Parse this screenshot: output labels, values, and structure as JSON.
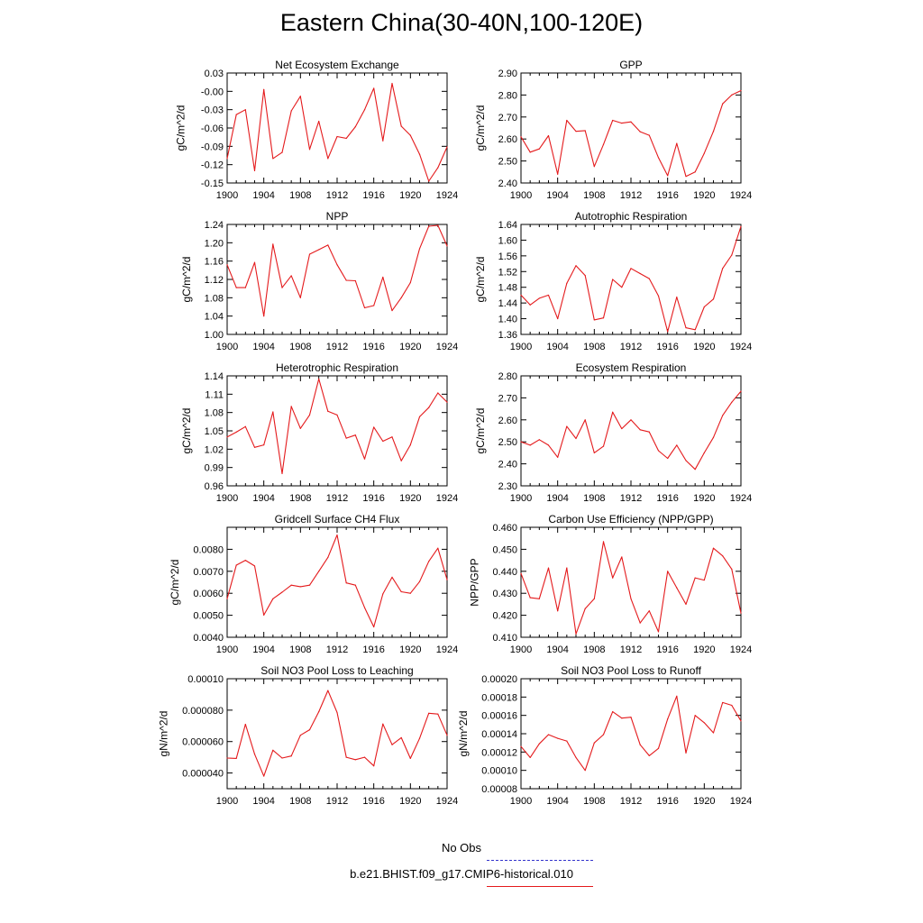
{
  "title": "Eastern China(30-40N,100-120E)",
  "legend": {
    "obs_label": "No Obs",
    "model_label": "b.e21.BHIST.f09_g17.CMIP6-historical.010",
    "obs_color": "#3333cc",
    "model_color": "#e41a1c"
  },
  "chart_data": [
    {
      "type": "line",
      "title": "Net Ecosystem Exchange",
      "ylabel": "gC/m^2/d",
      "xlim": [
        1900,
        1924
      ],
      "ylim": [
        -0.15,
        0.03
      ],
      "xticks": [
        "1900",
        "1904",
        "1908",
        "1912",
        "1916",
        "1920",
        "1924"
      ],
      "yticks": [
        "-0.15",
        "-0.12",
        "-0.09",
        "-0.06",
        "-0.03",
        "-0.00",
        "0.03"
      ],
      "series": [
        {
          "color": "#e41a1c",
          "x": [
            1900,
            1901,
            1902,
            1903,
            1904,
            1905,
            1906,
            1907,
            1908,
            1909,
            1910,
            1911,
            1912,
            1913,
            1914,
            1915,
            1916,
            1917,
            1918,
            1919,
            1920,
            1921,
            1922,
            1923,
            1924
          ],
          "values": [
            -0.11,
            -0.038,
            -0.03,
            -0.13,
            0.003,
            -0.11,
            -0.1,
            -0.032,
            -0.008,
            -0.095,
            -0.049,
            -0.11,
            -0.074,
            -0.077,
            -0.058,
            -0.03,
            0.005,
            -0.081,
            0.013,
            -0.057,
            -0.072,
            -0.103,
            -0.147,
            -0.125,
            -0.091
          ]
        }
      ]
    },
    {
      "type": "line",
      "title": "GPP",
      "ylabel": "gC/m^2/d",
      "xlim": [
        1900,
        1924
      ],
      "ylim": [
        2.4,
        2.9
      ],
      "xticks": [
        "1900",
        "1904",
        "1908",
        "1912",
        "1916",
        "1920",
        "1924"
      ],
      "yticks": [
        "2.40",
        "2.50",
        "2.60",
        "2.70",
        "2.80",
        "2.90"
      ],
      "series": [
        {
          "color": "#e41a1c",
          "x": [
            1900,
            1901,
            1902,
            1903,
            1904,
            1905,
            1906,
            1907,
            1908,
            1909,
            1910,
            1911,
            1912,
            1913,
            1914,
            1915,
            1916,
            1917,
            1918,
            1919,
            1920,
            1921,
            1922,
            1923,
            1924
          ],
          "values": [
            2.61,
            2.54,
            2.555,
            2.615,
            2.44,
            2.685,
            2.635,
            2.638,
            2.475,
            2.575,
            2.685,
            2.672,
            2.678,
            2.633,
            2.617,
            2.515,
            2.433,
            2.58,
            2.43,
            2.45,
            2.535,
            2.635,
            2.76,
            2.8,
            2.82
          ]
        }
      ]
    },
    {
      "type": "line",
      "title": "NPP",
      "ylabel": "gC/m^2/d",
      "xlim": [
        1900,
        1924
      ],
      "ylim": [
        1.0,
        1.24
      ],
      "xticks": [
        "1900",
        "1904",
        "1908",
        "1912",
        "1916",
        "1920",
        "1924"
      ],
      "yticks": [
        "1.00",
        "1.04",
        "1.08",
        "1.12",
        "1.16",
        "1.20",
        "1.24"
      ],
      "series": [
        {
          "color": "#e41a1c",
          "x": [
            1900,
            1901,
            1902,
            1903,
            1904,
            1905,
            1906,
            1907,
            1908,
            1909,
            1910,
            1911,
            1912,
            1913,
            1914,
            1915,
            1916,
            1917,
            1918,
            1919,
            1920,
            1921,
            1922,
            1923,
            1924
          ],
          "values": [
            1.152,
            1.102,
            1.102,
            1.157,
            1.04,
            1.197,
            1.102,
            1.128,
            1.08,
            1.175,
            1.185,
            1.195,
            1.152,
            1.118,
            1.117,
            1.058,
            1.063,
            1.125,
            1.052,
            1.08,
            1.113,
            1.187,
            1.236,
            1.238,
            1.193
          ]
        }
      ]
    },
    {
      "type": "line",
      "title": "Autotrophic Respiration",
      "ylabel": "gC/m^2/d",
      "xlim": [
        1900,
        1924
      ],
      "ylim": [
        1.36,
        1.64
      ],
      "xticks": [
        "1900",
        "1904",
        "1908",
        "1912",
        "1916",
        "1920",
        "1924"
      ],
      "yticks": [
        "1.36",
        "1.40",
        "1.44",
        "1.48",
        "1.52",
        "1.56",
        "1.60",
        "1.64"
      ],
      "series": [
        {
          "color": "#e41a1c",
          "x": [
            1900,
            1901,
            1902,
            1903,
            1904,
            1905,
            1906,
            1907,
            1908,
            1909,
            1910,
            1911,
            1912,
            1913,
            1914,
            1915,
            1916,
            1917,
            1918,
            1919,
            1920,
            1921,
            1922,
            1923,
            1924
          ],
          "values": [
            1.46,
            1.435,
            1.452,
            1.46,
            1.4,
            1.49,
            1.535,
            1.51,
            1.397,
            1.402,
            1.5,
            1.48,
            1.528,
            1.515,
            1.502,
            1.458,
            1.367,
            1.455,
            1.377,
            1.372,
            1.43,
            1.45,
            1.528,
            1.562,
            1.635
          ]
        }
      ]
    },
    {
      "type": "line",
      "title": "Heterotrophic Respiration",
      "ylabel": "gC/m^2/d",
      "xlim": [
        1900,
        1924
      ],
      "ylim": [
        0.96,
        1.14
      ],
      "xticks": [
        "1900",
        "1904",
        "1908",
        "1912",
        "1916",
        "1920",
        "1924"
      ],
      "yticks": [
        "0.96",
        "0.99",
        "1.02",
        "1.05",
        "1.08",
        "1.11",
        "1.14"
      ],
      "series": [
        {
          "color": "#e41a1c",
          "x": [
            1900,
            1901,
            1902,
            1903,
            1904,
            1905,
            1906,
            1907,
            1908,
            1909,
            1910,
            1911,
            1912,
            1913,
            1914,
            1915,
            1916,
            1917,
            1918,
            1919,
            1920,
            1921,
            1922,
            1923,
            1924
          ],
          "values": [
            1.04,
            1.048,
            1.057,
            1.023,
            1.027,
            1.081,
            0.98,
            1.09,
            1.054,
            1.076,
            1.135,
            1.082,
            1.076,
            1.038,
            1.043,
            1.004,
            1.056,
            1.033,
            1.04,
            1.001,
            1.027,
            1.073,
            1.088,
            1.112,
            1.097
          ]
        }
      ]
    },
    {
      "type": "line",
      "title": "Ecosystem Respiration",
      "ylabel": "gC/m^2/d",
      "xlim": [
        1900,
        1924
      ],
      "ylim": [
        2.3,
        2.8
      ],
      "xticks": [
        "1900",
        "1904",
        "1908",
        "1912",
        "1916",
        "1920",
        "1924"
      ],
      "yticks": [
        "2.30",
        "2.40",
        "2.50",
        "2.60",
        "2.70",
        "2.80"
      ],
      "series": [
        {
          "color": "#e41a1c",
          "x": [
            1900,
            1901,
            1902,
            1903,
            1904,
            1905,
            1906,
            1907,
            1908,
            1909,
            1910,
            1911,
            1912,
            1913,
            1914,
            1915,
            1916,
            1917,
            1918,
            1919,
            1920,
            1921,
            1922,
            1923,
            1924
          ],
          "values": [
            2.5,
            2.485,
            2.51,
            2.485,
            2.43,
            2.57,
            2.515,
            2.6,
            2.45,
            2.48,
            2.635,
            2.56,
            2.6,
            2.555,
            2.545,
            2.46,
            2.425,
            2.485,
            2.415,
            2.375,
            2.45,
            2.52,
            2.62,
            2.68,
            2.73
          ]
        }
      ]
    },
    {
      "type": "line",
      "title": "Gridcell Surface CH4 Flux",
      "ylabel": "gC/m^2/d",
      "xlim": [
        1900,
        1924
      ],
      "ylim": [
        0.004,
        0.009
      ],
      "xticks": [
        "1900",
        "1904",
        "1908",
        "1912",
        "1916",
        "1920",
        "1924"
      ],
      "yticks": [
        "0.0040",
        "0.0050",
        "0.0060",
        "0.0070",
        "0.0080"
      ],
      "series": [
        {
          "color": "#e41a1c",
          "x": [
            1900,
            1901,
            1902,
            1903,
            1904,
            1905,
            1906,
            1907,
            1908,
            1909,
            1910,
            1911,
            1912,
            1913,
            1914,
            1915,
            1916,
            1917,
            1918,
            1919,
            1920,
            1921,
            1922,
            1923,
            1924
          ],
          "values": [
            0.00575,
            0.00728,
            0.0075,
            0.00724,
            0.00501,
            0.00575,
            0.00605,
            0.00637,
            0.0063,
            0.00637,
            0.007,
            0.00763,
            0.00865,
            0.00647,
            0.00637,
            0.00535,
            0.00447,
            0.00597,
            0.00673,
            0.00607,
            0.006,
            0.00653,
            0.00745,
            0.00805,
            0.00662
          ]
        }
      ]
    },
    {
      "type": "line",
      "title": "Carbon Use Efficiency (NPP/GPP)",
      "ylabel": "NPP/GPP",
      "xlim": [
        1900,
        1924
      ],
      "ylim": [
        0.41,
        0.46
      ],
      "xticks": [
        "1900",
        "1904",
        "1908",
        "1912",
        "1916",
        "1920",
        "1924"
      ],
      "yticks": [
        "0.410",
        "0.420",
        "0.430",
        "0.440",
        "0.450",
        "0.460"
      ],
      "series": [
        {
          "color": "#e41a1c",
          "x": [
            1900,
            1901,
            1902,
            1903,
            1904,
            1905,
            1906,
            1907,
            1908,
            1909,
            1910,
            1911,
            1912,
            1913,
            1914,
            1915,
            1916,
            1917,
            1918,
            1919,
            1920,
            1921,
            1922,
            1923,
            1924
          ],
          "values": [
            0.439,
            0.428,
            0.4275,
            0.4415,
            0.422,
            0.4415,
            0.4115,
            0.423,
            0.4275,
            0.4535,
            0.437,
            0.4465,
            0.4275,
            0.4165,
            0.422,
            0.4125,
            0.44,
            0.4325,
            0.425,
            0.437,
            0.436,
            0.4505,
            0.447,
            0.441,
            0.421
          ]
        }
      ]
    },
    {
      "type": "line",
      "title": "Soil NO3 Pool Loss to Leaching",
      "ylabel": "gN/m^2/d",
      "xlim": [
        1900,
        1924
      ],
      "ylim": [
        3e-05,
        0.0001
      ],
      "xticks": [
        "1900",
        "1904",
        "1908",
        "1912",
        "1916",
        "1920",
        "1924"
      ],
      "yticks": [
        "0.000040",
        "0.000060",
        "0.000080",
        "0.00010"
      ],
      "series": [
        {
          "color": "#e41a1c",
          "x": [
            1900,
            1901,
            1902,
            1903,
            1904,
            1905,
            1906,
            1907,
            1908,
            1909,
            1910,
            1911,
            1912,
            1913,
            1914,
            1915,
            1916,
            1917,
            1918,
            1919,
            1920,
            1921,
            1922,
            1923,
            1924
          ],
          "values": [
            4.95e-05,
            4.93e-05,
            7.1e-05,
            5.2e-05,
            3.8e-05,
            5.45e-05,
            4.95e-05,
            5.08e-05,
            6.4e-05,
            6.75e-05,
            7.9e-05,
            9.25e-05,
            7.85e-05,
            5e-05,
            4.85e-05,
            5e-05,
            4.45e-05,
            7.12e-05,
            5.8e-05,
            6.25e-05,
            4.93e-05,
            6.2e-05,
            7.8e-05,
            7.75e-05,
            6.4e-05
          ]
        }
      ]
    },
    {
      "type": "line",
      "title": "Soil NO3 Pool Loss to Runoff",
      "ylabel": "gN/m^2/d",
      "xlim": [
        1900,
        1924
      ],
      "ylim": [
        8e-05,
        0.0002
      ],
      "xticks": [
        "1900",
        "1904",
        "1908",
        "1912",
        "1916",
        "1920",
        "1924"
      ],
      "yticks": [
        "0.00008",
        "0.00010",
        "0.00012",
        "0.00014",
        "0.00016",
        "0.00018",
        "0.00020"
      ],
      "series": [
        {
          "color": "#e41a1c",
          "x": [
            1900,
            1901,
            1902,
            1903,
            1904,
            1905,
            1906,
            1907,
            1908,
            1909,
            1910,
            1911,
            1912,
            1913,
            1914,
            1915,
            1916,
            1917,
            1918,
            1919,
            1920,
            1921,
            1922,
            1923,
            1924
          ],
          "values": [
            0.000126,
            0.000114,
            0.000129,
            0.000139,
            0.000135,
            0.000132,
            0.000114,
            0.0001,
            0.00013,
            0.000139,
            0.000164,
            0.000157,
            0.000158,
            0.000128,
            0.000116,
            0.000124,
            0.000156,
            0.000181,
            0.000119,
            0.00016,
            0.000152,
            0.000141,
            0.000174,
            0.000171,
            0.000154
          ]
        }
      ]
    }
  ]
}
